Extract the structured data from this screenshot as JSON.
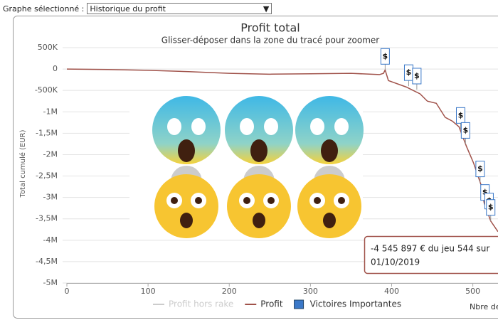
{
  "selector": {
    "label": "Graphe sélectionné :",
    "value": "Historique du profit"
  },
  "chart_data": {
    "type": "line",
    "title": "Profit total",
    "subtitle": "Glisser-déposer dans la zone du tracé pour zoomer",
    "y_label": "Total cumulé (EUR)",
    "x_label": "Nbre de",
    "xlim": [
      0,
      531
    ],
    "xticks": [
      0,
      100,
      200,
      300,
      400,
      500
    ],
    "ylim": [
      -5000000,
      500000
    ],
    "yticks": [
      {
        "value": 500000,
        "label": "500K"
      },
      0,
      {
        "value": -500000,
        "label": "-500K"
      },
      {
        "value": -1000000,
        "label": "-1M"
      },
      {
        "value": -1500000,
        "label": "-1,5M"
      },
      {
        "value": -2000000,
        "label": "-2M"
      },
      {
        "value": -2500000,
        "label": "-2,5M"
      },
      {
        "value": -3000000,
        "label": "-3M"
      },
      {
        "value": -3500000,
        "label": "-3,5M"
      },
      {
        "value": -4000000,
        "label": "-4M"
      },
      {
        "value": -4500000,
        "label": "-4,5M"
      },
      {
        "value": -5000000,
        "label": "-5M"
      }
    ],
    "grid": true,
    "flag_text": "$",
    "series": [
      {
        "name": "Profit hors rake",
        "color": "#cccccc",
        "visible": false,
        "x": [],
        "values": []
      },
      {
        "name": "Profit",
        "color": "#a0524a",
        "visible": true,
        "x": [
          0,
          50,
          100,
          150,
          200,
          250,
          300,
          350,
          385,
          390,
          392,
          396,
          418,
          435,
          444,
          455,
          466,
          475,
          483,
          492,
          501,
          510,
          514,
          522,
          531
        ],
        "values": [
          0,
          -10000,
          -30000,
          -60000,
          -100000,
          -120000,
          -110000,
          -100000,
          -130000,
          -100000,
          -20000,
          -270000,
          -420000,
          -580000,
          -750000,
          -800000,
          -1130000,
          -1220000,
          -1350000,
          -1800000,
          -2200000,
          -2700000,
          -3130000,
          -3550000,
          -3800000
        ]
      },
      {
        "name": "Victoires Importantes",
        "color": "#3a78c8",
        "visible": true,
        "kind": "flags",
        "x": [
          392,
          421,
          431,
          485,
          491,
          509,
          515,
          520,
          522
        ],
        "values": [
          -20000,
          -400000,
          -480000,
          -1400000,
          -1750000,
          -2650000,
          -3200000,
          -3400000,
          -3550000
        ]
      }
    ],
    "tooltip": {
      "line1": "-4 545 897 € du jeu 544 sur",
      "line2": "01/10/2019"
    }
  }
}
